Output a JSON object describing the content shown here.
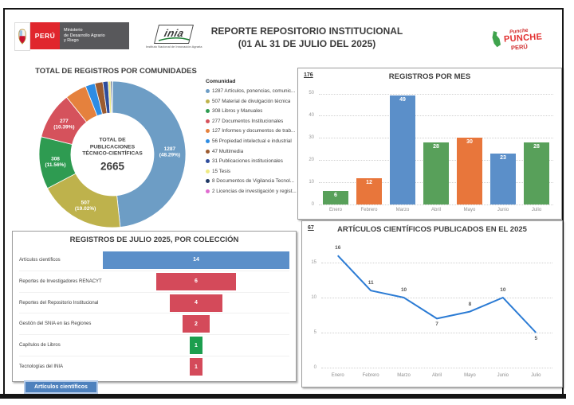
{
  "header": {
    "gov_logo": {
      "country": "PERÚ",
      "ministry_lines": [
        "Ministerio",
        "de Desarrollo Agrario",
        "y Riego"
      ]
    },
    "inia_logo": {
      "name": "inia",
      "caption": "Instituto Nacional de Innovación Agraria"
    },
    "title_line1": "REPORTE REPOSITORIO INSTITUCIONAL",
    "title_line2": "(01 AL 31 DE JULIO DEL 2025)",
    "punche_logo": {
      "script": "Punche",
      "main": "PUNCHE",
      "country": "PERÚ"
    }
  },
  "footer_tab": {
    "label": "Artículos científicos"
  },
  "chart_data": [
    {
      "id": "donut_comunidades",
      "type": "pie",
      "title": "TOTAL DE REGISTROS POR COMUNIDADES",
      "legend_title": "Comunidad",
      "legend_position": "right",
      "center_label": [
        "TOTAL DE",
        "PUBLICACIONES",
        "TÉCNICO-CIENTÍFICAS"
      ],
      "center_value": "2665",
      "total": 2665,
      "slices": [
        {
          "value": 1287,
          "pct": "48.29%",
          "label": "Artículos, ponencias, comunic...",
          "color": "#6D9DC5"
        },
        {
          "value": 507,
          "pct": "19.02%",
          "label": "Material de divulgación técnica",
          "color": "#BEB24C"
        },
        {
          "value": 308,
          "pct": "11.56%",
          "label": "Libros y Manuales",
          "color": "#2E9B51"
        },
        {
          "value": 277,
          "pct": "10.39%",
          "label": "Documentos Institucionales",
          "color": "#D5525C"
        },
        {
          "value": 127,
          "pct": null,
          "label": "Informes y documentos de trab...",
          "color": "#E5813D"
        },
        {
          "value": 56,
          "pct": null,
          "label": "Propiedad intelectual e industrial",
          "color": "#2D8CE3"
        },
        {
          "value": 47,
          "pct": null,
          "label": "Multimedia",
          "color": "#9C5B30"
        },
        {
          "value": 31,
          "pct": null,
          "label": "Publicaciones institucionales",
          "color": "#2F4D9B"
        },
        {
          "value": 15,
          "pct": null,
          "label": "Tesis",
          "color": "#EFEA83"
        },
        {
          "value": 8,
          "pct": null,
          "label": "Documentos de Vigilancia Tecnol...",
          "color": "#1F3864"
        },
        {
          "value": 2,
          "pct": null,
          "label": "Licencias de investigación y regist...",
          "color": "#E06CD0"
        }
      ]
    },
    {
      "id": "bar_registros_mes",
      "type": "bar",
      "title": "REGISTROS POR MES",
      "total": "176",
      "categories": [
        "Enero",
        "Febrero",
        "Marzo",
        "Abril",
        "Mayo",
        "Junio",
        "Julio"
      ],
      "values": [
        6,
        12,
        49,
        28,
        30,
        23,
        28
      ],
      "bar_colors": [
        "#58A05A",
        "#E8763B",
        "#5B8FC9",
        "#58A05A",
        "#E8763B",
        "#5B8FC9",
        "#58A05A"
      ],
      "yticks": [
        0,
        10,
        20,
        30,
        40,
        50
      ],
      "ylim": [
        0,
        52
      ],
      "grid": "dotted"
    },
    {
      "id": "funnel_colecciones",
      "type": "funnel",
      "title": "REGISTROS DE JULIO 2025, POR COLECCIÓN",
      "categories": [
        "Artículos científicos",
        "Reportes de Investigadores RENACYT",
        "Reportes del Repositorio Institucional",
        "Gestión del SNIA en las Regiones",
        "Capítulos de Libros",
        "Tecnologías del INIA"
      ],
      "values": [
        14,
        6,
        4,
        2,
        1,
        1
      ],
      "bar_colors": [
        "#5B8FC9",
        "#D44A5A",
        "#D44A5A",
        "#D44A5A",
        "#1C9E4E",
        "#D44A5A"
      ]
    },
    {
      "id": "line_articulos",
      "type": "line",
      "title": "ARTÍCULOS CIENTÍFICOS PUBLICADOS EN EL 2025",
      "total": "67",
      "categories": [
        "Enero",
        "Febrero",
        "Marzo",
        "Abril",
        "Mayo",
        "Junio",
        "Julio"
      ],
      "values": [
        16,
        11,
        10,
        7,
        8,
        10,
        5
      ],
      "line_color": "#2B7BD4",
      "yticks": [
        0,
        5,
        10,
        15
      ],
      "ylim": [
        0,
        17.5
      ],
      "grid": "dotted"
    }
  ]
}
